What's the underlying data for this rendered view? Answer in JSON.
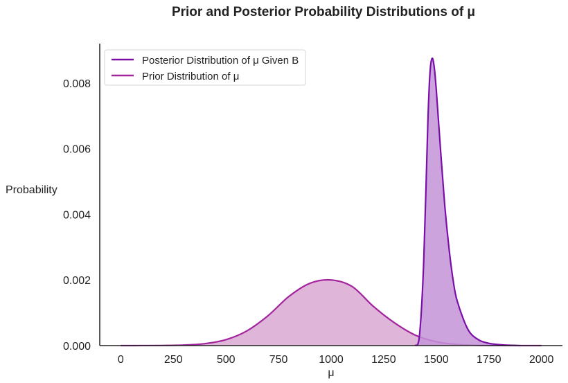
{
  "chart_data": {
    "type": "area",
    "title": "Prior and Posterior Probability Distributions of μ",
    "xlabel": "μ",
    "ylabel": "Probability",
    "xlim": [
      -100,
      2100
    ],
    "ylim": [
      0,
      0.0092
    ],
    "xticks": [
      0,
      250,
      500,
      750,
      1000,
      1250,
      1500,
      1750,
      2000
    ],
    "yticks": [
      0.0,
      0.002,
      0.004,
      0.006,
      0.008
    ],
    "ytick_labels": [
      "0.000",
      "0.002",
      "0.004",
      "0.006",
      "0.008"
    ],
    "grid": false,
    "legend_position": "top-left",
    "series": [
      {
        "name": "Posterior Distribution of μ Given B",
        "line_color": "#7a0fa8",
        "fill_color": "#c493d8",
        "x": [
          1400,
          1420,
          1440,
          1460,
          1470,
          1480,
          1490,
          1500,
          1520,
          1540,
          1560,
          1580,
          1600,
          1650,
          1700,
          1750,
          1800,
          1850,
          1900
        ],
        "y": [
          0.0,
          0.0003,
          0.0025,
          0.0068,
          0.0083,
          0.00875,
          0.0085,
          0.0078,
          0.006,
          0.0043,
          0.003,
          0.002,
          0.00135,
          0.0005,
          0.00018,
          7e-05,
          3e-05,
          1e-05,
          0.0
        ]
      },
      {
        "name": "Prior Distribution of μ",
        "line_color": "#a3259e",
        "fill_color": "#dba8d3",
        "x": [
          0,
          100,
          200,
          300,
          400,
          500,
          600,
          700,
          800,
          900,
          1000,
          1100,
          1200,
          1300,
          1400,
          1500,
          1600,
          1700,
          1800,
          1900,
          2000
        ],
        "y": [
          0.0,
          1e-06,
          4e-06,
          1.7e-05,
          5.9e-05,
          0.00018,
          0.00045,
          0.00091,
          0.0015,
          0.0019,
          0.002,
          0.0018,
          0.0012,
          0.0007,
          0.00032,
          0.00012,
          3.5e-05,
          8e-06,
          2e-06,
          0.0,
          0.0
        ]
      }
    ]
  }
}
